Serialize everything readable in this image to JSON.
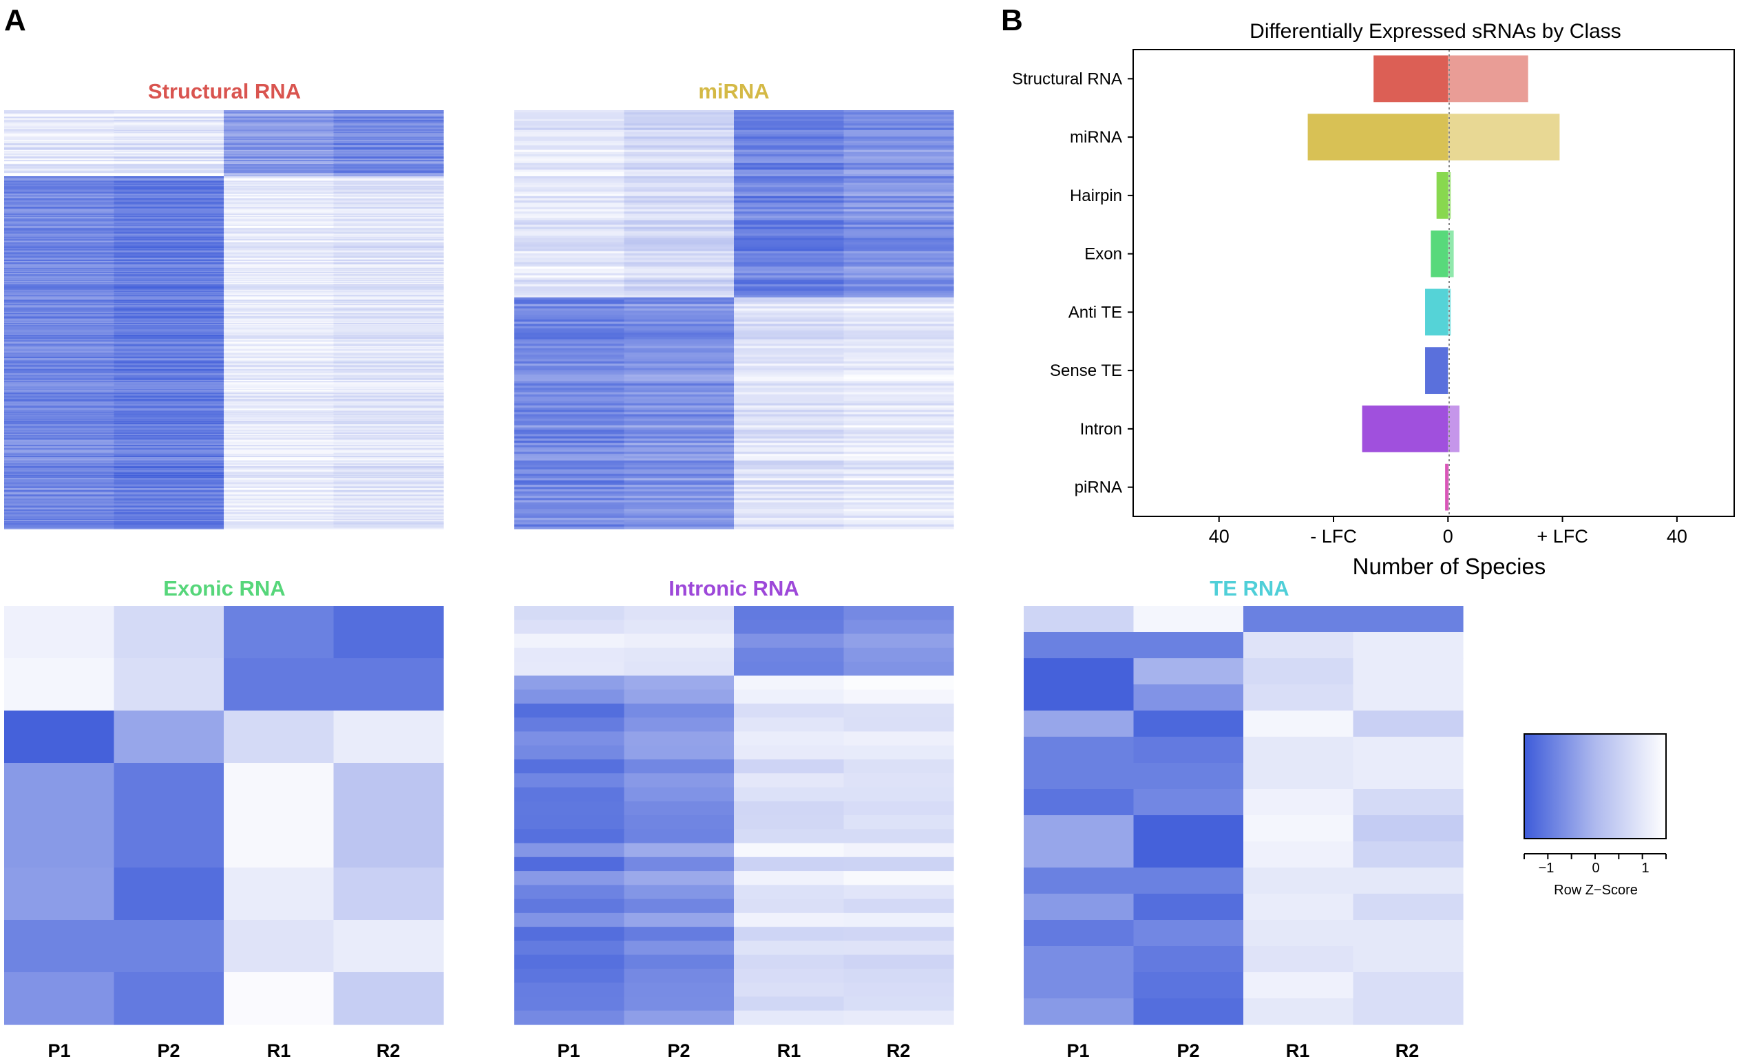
{
  "panels": {
    "a": "A",
    "b": "B"
  },
  "legend": {
    "title": "Row Z−Score",
    "ticks": [
      "−1",
      "0",
      "1"
    ]
  },
  "chart_data": [
    {
      "type": "bar",
      "orientation": "horizontal",
      "title": "Differentially Expressed sRNAs by Class",
      "xlabel": "Number of Species",
      "xlim": [
        -55,
        50
      ],
      "x_ticks": [
        {
          "v": -40,
          "t": "40"
        },
        {
          "v": -20,
          "t": "- LFC"
        },
        {
          "v": 0,
          "t": "0"
        },
        {
          "v": 20,
          "t": "+ LFC"
        },
        {
          "v": 40,
          "t": "40"
        }
      ],
      "categories": [
        "Structural RNA",
        "miRNA",
        "Hairpin",
        "Exon",
        "Anti TE",
        "Sense TE",
        "Intron",
        "piRNA"
      ],
      "series": [
        {
          "name": "- LFC",
          "values": [
            -13,
            -24.5,
            -2,
            -3,
            -4,
            -4,
            -15,
            -0.5
          ]
        },
        {
          "name": "+ LFC",
          "values": [
            14,
            19.5,
            0.5,
            1,
            0.5,
            0,
            2,
            0.2
          ]
        }
      ],
      "colors_neg": [
        "#dc5f55",
        "#d8c155",
        "#88d84f",
        "#58d97b",
        "#55d3d7",
        "#5a70dc",
        "#a050dd",
        "#d955b8"
      ],
      "colors_pos": [
        "#e99d96",
        "#e8d894",
        "#b0e890",
        "#90e8ac",
        "#92e6e8",
        "#9aa8ea",
        "#c596ea",
        "#e894d4"
      ]
    },
    {
      "type": "heatmap",
      "title": "Structural RNA",
      "title_color": "#d9544f",
      "columns": [
        "P1",
        "P2",
        "R1",
        "R2"
      ],
      "blocks": [
        {
          "rows": 60,
          "means": [
            1.05,
            1.0,
            -0.45,
            -0.7
          ],
          "jitter": 0.55
        },
        {
          "rows": 320,
          "means": [
            -0.75,
            -0.95,
            1.1,
            0.95
          ],
          "jitter": 0.4
        }
      ]
    },
    {
      "type": "heatmap",
      "title": "miRNA",
      "title_color": "#d4b945",
      "columns": [
        "P1",
        "P2",
        "R1",
        "R2"
      ],
      "blocks": [
        {
          "rows": 85,
          "means": [
            1.0,
            0.7,
            -0.85,
            -0.6
          ],
          "jitter": 0.4
        },
        {
          "rows": 105,
          "means": [
            -0.75,
            -0.6,
            0.9,
            1.05
          ],
          "jitter": 0.4
        }
      ]
    },
    {
      "type": "heatmap",
      "title": "Exonic RNA",
      "title_color": "#56d67a",
      "columns": [
        "P1",
        "P2",
        "R1",
        "R2"
      ],
      "rows": [
        [
          1.2,
          0.7,
          -0.9,
          -1.2
        ],
        [
          1.3,
          0.8,
          -1.0,
          -1.0
        ],
        [
          -1.4,
          -0.3,
          0.7,
          1.1
        ],
        [
          -0.5,
          -1.0,
          1.35,
          0.25
        ],
        [
          -0.5,
          -1.0,
          1.35,
          0.25
        ],
        [
          -0.45,
          -1.2,
          1.1,
          0.5
        ],
        [
          -0.85,
          -0.85,
          0.9,
          1.1
        ],
        [
          -0.6,
          -1.0,
          1.4,
          0.45
        ]
      ]
    },
    {
      "type": "heatmap",
      "title": "Intronic RNA",
      "title_color": "#9d48d9",
      "columns": [
        "P1",
        "P2",
        "R1",
        "R2"
      ],
      "blocks": [
        {
          "rows": 5,
          "means": [
            0.95,
            1.0,
            -0.9,
            -0.6
          ],
          "jitter": 0.3
        },
        {
          "rows": 25,
          "means": [
            -0.85,
            -0.5,
            0.95,
            1.0
          ],
          "jitter": 0.4
        }
      ]
    },
    {
      "type": "heatmap",
      "title": "TE RNA",
      "title_color": "#4fcfd8",
      "columns": [
        "P1",
        "P2",
        "R1",
        "R2"
      ],
      "rows": [
        [
          0.6,
          1.3,
          -0.9,
          -0.9
        ],
        [
          -0.9,
          -0.9,
          0.9,
          1.1
        ],
        [
          -1.4,
          -0.1,
          0.7,
          1.1
        ],
        [
          -1.4,
          -0.6,
          0.8,
          1.1
        ],
        [
          -0.3,
          -1.3,
          1.3,
          0.5
        ],
        [
          -0.9,
          -1.0,
          1.0,
          1.1
        ],
        [
          -0.9,
          -0.9,
          1.0,
          1.1
        ],
        [
          -1.1,
          -0.8,
          1.2,
          0.7
        ],
        [
          -0.3,
          -1.4,
          1.3,
          0.4
        ],
        [
          -0.3,
          -1.4,
          1.2,
          0.6
        ],
        [
          -0.9,
          -0.9,
          1.0,
          1.0
        ],
        [
          -0.5,
          -1.2,
          1.1,
          0.7
        ],
        [
          -1.0,
          -0.8,
          1.0,
          1.0
        ],
        [
          -0.7,
          -1.0,
          0.9,
          1.0
        ],
        [
          -0.7,
          -1.1,
          1.2,
          0.8
        ],
        [
          -0.5,
          -1.2,
          1.0,
          0.8
        ]
      ]
    }
  ]
}
